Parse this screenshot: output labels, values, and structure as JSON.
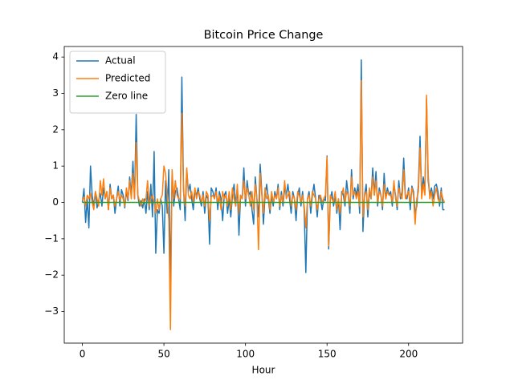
{
  "chart_data": {
    "type": "line",
    "title": "Bitcoin Price Change",
    "xlabel": "Hour",
    "x": [
      0,
      1,
      2,
      3,
      4,
      5,
      6,
      7,
      8,
      9,
      10,
      11,
      12,
      13,
      14,
      15,
      16,
      17,
      18,
      19,
      20,
      21,
      22,
      23,
      24,
      25,
      26,
      27,
      28,
      29,
      30,
      31,
      32,
      33,
      34,
      35,
      36,
      37,
      38,
      39,
      40,
      41,
      42,
      43,
      44,
      45,
      46,
      47,
      48,
      49,
      50,
      51,
      52,
      53,
      54,
      55,
      56,
      57,
      58,
      59,
      60,
      61,
      62,
      63,
      64,
      65,
      66,
      67,
      68,
      69,
      70,
      71,
      72,
      73,
      74,
      75,
      76,
      77,
      78,
      79,
      80,
      81,
      82,
      83,
      84,
      85,
      86,
      87,
      88,
      89,
      90,
      91,
      92,
      93,
      94,
      95,
      96,
      97,
      98,
      99,
      100,
      101,
      102,
      103,
      104,
      105,
      106,
      107,
      108,
      109,
      110,
      111,
      112,
      113,
      114,
      115,
      116,
      117,
      118,
      119,
      120,
      121,
      122,
      123,
      124,
      125,
      126,
      127,
      128,
      129,
      130,
      131,
      132,
      133,
      134,
      135,
      136,
      137,
      138,
      139,
      140,
      141,
      142,
      143,
      144,
      145,
      146,
      147,
      148,
      149,
      150,
      151,
      152,
      153,
      154,
      155,
      156,
      157,
      158,
      159,
      160,
      161,
      162,
      163,
      164,
      165,
      166,
      167,
      168,
      169,
      170,
      171,
      172,
      173,
      174,
      175,
      176,
      177,
      178,
      179,
      180,
      181,
      182,
      183,
      184,
      185,
      186,
      187,
      188,
      189,
      190,
      191,
      192,
      193,
      194,
      195,
      196,
      197,
      198,
      199,
      200,
      201,
      202,
      203,
      204,
      205,
      206,
      207,
      208,
      209,
      210,
      211,
      212,
      213,
      214,
      215,
      216,
      217,
      218,
      219,
      220,
      221,
      222
    ],
    "series": [
      {
        "name": "Actual",
        "color": "#1f77b4",
        "values": [
          0,
          0.38,
          -0.55,
          0.1,
          -0.7,
          1.0,
          0.2,
          -0.1,
          0.3,
          -0.15,
          0.05,
          0.25,
          -0.1,
          0.4,
          0.1,
          0.3,
          -0.2,
          0.5,
          0.1,
          0.2,
          -0.3,
          0.1,
          0.45,
          -0.1,
          0.35,
          0.2,
          -0.15,
          0.3,
          0.05,
          0.7,
          0.2,
          1.13,
          0.1,
          2.42,
          0.2,
          -0.1,
          0.05,
          -0.15,
          0.1,
          -0.3,
          0.3,
          -0.2,
          0.5,
          -0.4,
          1.4,
          -1.4,
          -0.2,
          -0.3,
          0.1,
          -0.1,
          -1.4,
          0.6,
          -0.3,
          0.9,
          -2.2,
          0.8,
          -0.1,
          0.3,
          0.4,
          0.1,
          -0.2,
          3.45,
          0.4,
          -0.5,
          0.9,
          0.3,
          0.5,
          0.1,
          -0.2,
          0.3,
          0.2,
          0.4,
          0.1,
          -0.1,
          0.3,
          -0.3,
          0.2,
          0.1,
          -1.15,
          0.4,
          0.3,
          0.1,
          0.4,
          -0.2,
          0.3,
          0.1,
          -0.5,
          0.2,
          0.3,
          -0.3,
          0.1,
          -0.4,
          0.2,
          0.5,
          -0.1,
          0.4,
          -0.9,
          0.2,
          0.1,
          0.95,
          -0.1,
          0.6,
          0.2,
          0.3,
          -0.2,
          -0.6,
          0.7,
          0.1,
          -0.4,
          1.05,
          0.3,
          -0.6,
          0.2,
          0.5,
          0.1,
          -0.3,
          0.2,
          -0.1,
          0.3,
          0.1,
          0.5,
          -0.2,
          0.3,
          -0.1,
          0.4,
          0.2,
          0.5,
          0.1,
          -0.3,
          0.3,
          0.1,
          -0.5,
          0.2,
          0.4,
          -0.1,
          0.3,
          -0.2,
          -1.93,
          0.1,
          0.3,
          -0.3,
          0.2,
          0.5,
          0.1,
          -0.4,
          0.2,
          0.1,
          -0.2,
          0.1,
          0.05,
          1.28,
          -1.28,
          0.1,
          0.3,
          -0.1,
          0.2,
          -0.3,
          0.1,
          -0.75,
          0.3,
          0.2,
          -0.1,
          0.6,
          0.2,
          -0.3,
          0.9,
          0.1,
          0.4,
          0.2,
          0.5,
          -0.3,
          3.92,
          -0.8,
          0.2,
          0.5,
          -0.4,
          0.3,
          0.1,
          0.95,
          0.2,
          0.85,
          -0.1,
          0.4,
          0.2,
          -0.2,
          0.8,
          0.1,
          0.4,
          0.2,
          0.3,
          -0.1,
          0.5,
          0.2,
          -0.2,
          0.6,
          0.1,
          0.3,
          1.22,
          0.2,
          0.1,
          0.4,
          -0.2,
          0.45,
          0.3,
          -0.3,
          -0.1,
          0.5,
          1.82,
          0.2,
          0.7,
          0.3,
          2.85,
          0.6,
          0.2,
          0.4,
          0.1,
          0.45,
          0.5,
          0.3,
          -0.1,
          0.4,
          -0.2,
          -0.2
        ]
      },
      {
        "name": "Predicted",
        "color": "#ff7f0e",
        "values": [
          0.05,
          0.15,
          -0.1,
          0.2,
          0.1,
          0.25,
          0.0,
          -0.2,
          0.3,
          0.1,
          -0.1,
          0.6,
          0.2,
          0.65,
          0.1,
          0.3,
          -0.2,
          0.4,
          0.1,
          0.2,
          -0.1,
          0.1,
          0.3,
          0.05,
          0.2,
          0.1,
          -0.1,
          0.4,
          0.1,
          0.6,
          0.1,
          0.8,
          0.1,
          1.65,
          0.2,
          0.05,
          -0.1,
          0.1,
          0.0,
          0.1,
          0.6,
          -0.1,
          0.1,
          0.2,
          0.0,
          -0.3,
          0.1,
          -0.2,
          0.1,
          0.2,
          1.0,
          0.8,
          0.2,
          -0.5,
          -3.5,
          0.9,
          0.1,
          0.6,
          0.2,
          0.1,
          0.1,
          2.45,
          0.3,
          -0.1,
          0.95,
          0.2,
          0.1,
          0.3,
          0.0,
          0.4,
          0.1,
          0.3,
          0.2,
          0.0,
          0.2,
          -0.1,
          0.3,
          0.2,
          -0.5,
          0.15,
          0.2,
          0.1,
          0.3,
          0.0,
          0.2,
          -0.2,
          0.3,
          0.1,
          0.2,
          -0.1,
          0.3,
          -0.2,
          0.4,
          0.1,
          -0.1,
          0.5,
          -0.3,
          0.2,
          0.1,
          0.6,
          0.1,
          0.4,
          0.2,
          -0.1,
          0.3,
          -0.2,
          0.5,
          0.1,
          -1.3,
          0.8,
          0.2,
          -0.3,
          0.4,
          0.1,
          0.2,
          -0.2,
          0.3,
          0.0,
          0.2,
          0.1,
          0.4,
          -0.1,
          0.2,
          0.0,
          0.6,
          0.1,
          0.2,
          0.3,
          -0.1,
          0.2,
          0.1,
          -0.2,
          0.3,
          0.2,
          0.0,
          0.2,
          -0.1,
          -0.7,
          0.1,
          0.2,
          -0.1,
          0.3,
          0.2,
          0.1,
          -0.2,
          0.1,
          0.2,
          0.0,
          0.1,
          0.2,
          1.25,
          -1.2,
          0.2,
          0.1,
          0.0,
          0.3,
          -0.2,
          0.1,
          -0.3,
          0.2,
          0.4,
          0.0,
          0.3,
          0.2,
          -0.1,
          0.7,
          0.2,
          0.3,
          0.1,
          0.3,
          -0.1,
          3.35,
          -0.4,
          0.2,
          0.3,
          -0.2,
          0.4,
          0.1,
          0.7,
          0.2,
          0.6,
          0.0,
          0.3,
          0.2,
          -0.1,
          0.5,
          0.1,
          0.3,
          0.2,
          0.2,
          0.0,
          0.6,
          0.1,
          -0.1,
          0.4,
          0.2,
          0.1,
          0.9,
          0.1,
          0.2,
          0.3,
          0.0,
          0.4,
          0.2,
          -0.6,
          0.1,
          0.3,
          1.5,
          0.1,
          0.5,
          0.2,
          2.95,
          0.8,
          0.1,
          0.3,
          -0.1,
          0.2,
          0.4,
          0.1,
          0.0,
          0.3,
          0.1,
          0.0
        ]
      },
      {
        "name": "Zero line",
        "color": "#2ca02c",
        "x": [
          0,
          222
        ],
        "values": [
          0,
          0
        ]
      }
    ],
    "xlim": [
      -11.1,
      233.1
    ],
    "ylim": [
      -3.87,
      4.29
    ],
    "xticks": [
      0,
      50,
      100,
      150,
      200
    ],
    "yticks": [
      {
        "value": -3,
        "label": "−3"
      },
      {
        "value": -2,
        "label": "−2"
      },
      {
        "value": -1,
        "label": "−1"
      },
      0,
      1,
      2,
      3,
      4
    ],
    "legend": "upper left"
  }
}
